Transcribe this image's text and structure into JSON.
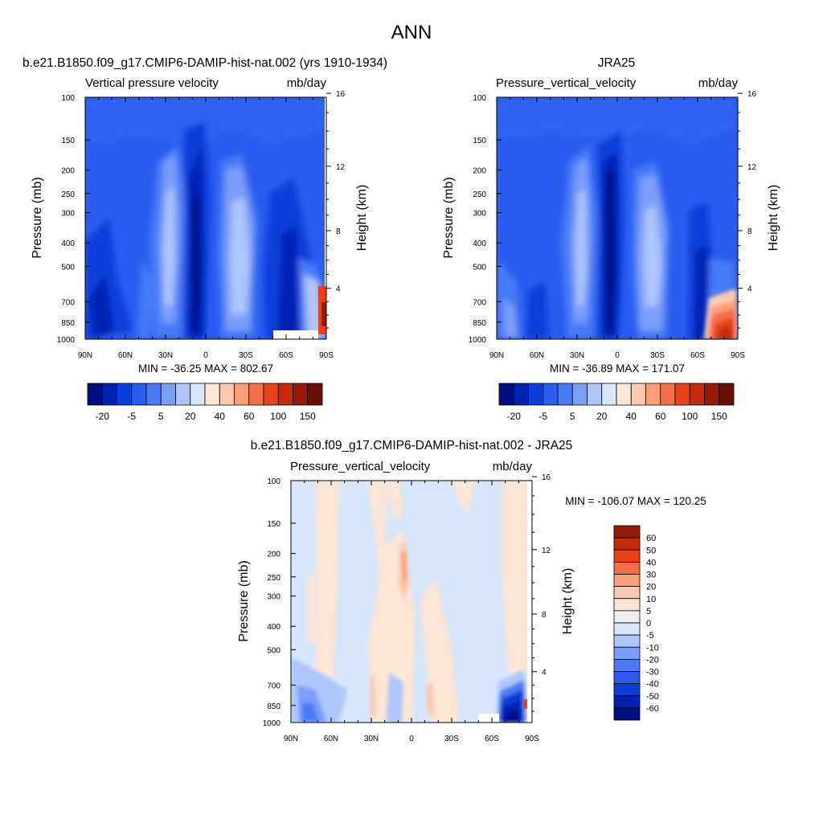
{
  "page_title": "ANN",
  "chart_data": [
    {
      "type": "heatmap",
      "title": "b.e21.B1850.f09_g17.CMIP6-DAMIP-hist-nat.002 (yrs 1910-1934)",
      "variable": "Vertical pressure velocity",
      "units": "mb/day",
      "ylabel": "Pressure (mb)",
      "y2label": "Height (km)",
      "xticks": [
        "90N",
        "60N",
        "30N",
        "0",
        "30S",
        "60S",
        "90S"
      ],
      "yticks": [
        100,
        150,
        200,
        250,
        300,
        400,
        500,
        700,
        850,
        1000
      ],
      "y2ticks": [
        16,
        12,
        8,
        4
      ],
      "ylim": [
        100,
        1000
      ],
      "y_scale": "log",
      "stats": "MIN = -36.25  MAX = 802.67",
      "colorbar_labels": [
        "-20",
        "-5",
        "5",
        "20",
        "40",
        "60",
        "100",
        "150"
      ],
      "colorbar_orientation": "horizontal"
    },
    {
      "type": "heatmap",
      "title": "JRA25",
      "variable": "Pressure_vertical_velocity",
      "units": "mb/day",
      "ylabel": "Pressure (mb)",
      "y2label": "Height (km)",
      "xticks": [
        "90N",
        "60N",
        "30N",
        "0",
        "30S",
        "60S",
        "90S"
      ],
      "yticks": [
        100,
        150,
        200,
        250,
        300,
        400,
        500,
        700,
        850,
        1000
      ],
      "y2ticks": [
        16,
        12,
        8,
        4
      ],
      "ylim": [
        100,
        1000
      ],
      "y_scale": "log",
      "stats": "MIN = -36.89  MAX = 171.07",
      "colorbar_labels": [
        "-20",
        "-5",
        "5",
        "20",
        "40",
        "60",
        "100",
        "150"
      ],
      "colorbar_orientation": "horizontal"
    },
    {
      "type": "heatmap",
      "title": "b.e21.B1850.f09_g17.CMIP6-DAMIP-hist-nat.002 - JRA25",
      "variable": "Pressure_vertical_velocity",
      "units": "mb/day",
      "ylabel": "Pressure (mb)",
      "y2label": "Height (km)",
      "xticks": [
        "90N",
        "60N",
        "30N",
        "0",
        "30S",
        "60S",
        "90S"
      ],
      "yticks": [
        100,
        150,
        200,
        250,
        300,
        400,
        500,
        700,
        850,
        1000
      ],
      "y2ticks": [
        16,
        12,
        8,
        4
      ],
      "ylim": [
        100,
        1000
      ],
      "y_scale": "log",
      "stats": "MIN = -106.07  MAX = 120.25",
      "colorbar_labels": [
        "60",
        "50",
        "40",
        "30",
        "20",
        "10",
        "5",
        "0",
        "-5",
        "-10",
        "-20",
        "-30",
        "-40",
        "-50",
        "-60"
      ],
      "colorbar_orientation": "vertical"
    }
  ],
  "colors": {
    "abs_scale": [
      "#000e84",
      "#0021b3",
      "#0a3ed8",
      "#2a5cf0",
      "#4a7af7",
      "#7b9ef9",
      "#aec6fb",
      "#d5e6fd",
      "#fde6d6",
      "#fbc9ae",
      "#f9a07a",
      "#f46e47",
      "#e84216",
      "#c62a0a",
      "#961a08",
      "#6b0f06"
    ],
    "diff_scale": [
      "#000e84",
      "#0021b3",
      "#0a3ed8",
      "#2a5cf0",
      "#4a7af7",
      "#7b9ef9",
      "#aec6fb",
      "#d5e6fd",
      "#eeeeee",
      "#fde6d6",
      "#fbc9ae",
      "#f9a07a",
      "#f46e47",
      "#e84216",
      "#c62a0a",
      "#961a08"
    ]
  }
}
